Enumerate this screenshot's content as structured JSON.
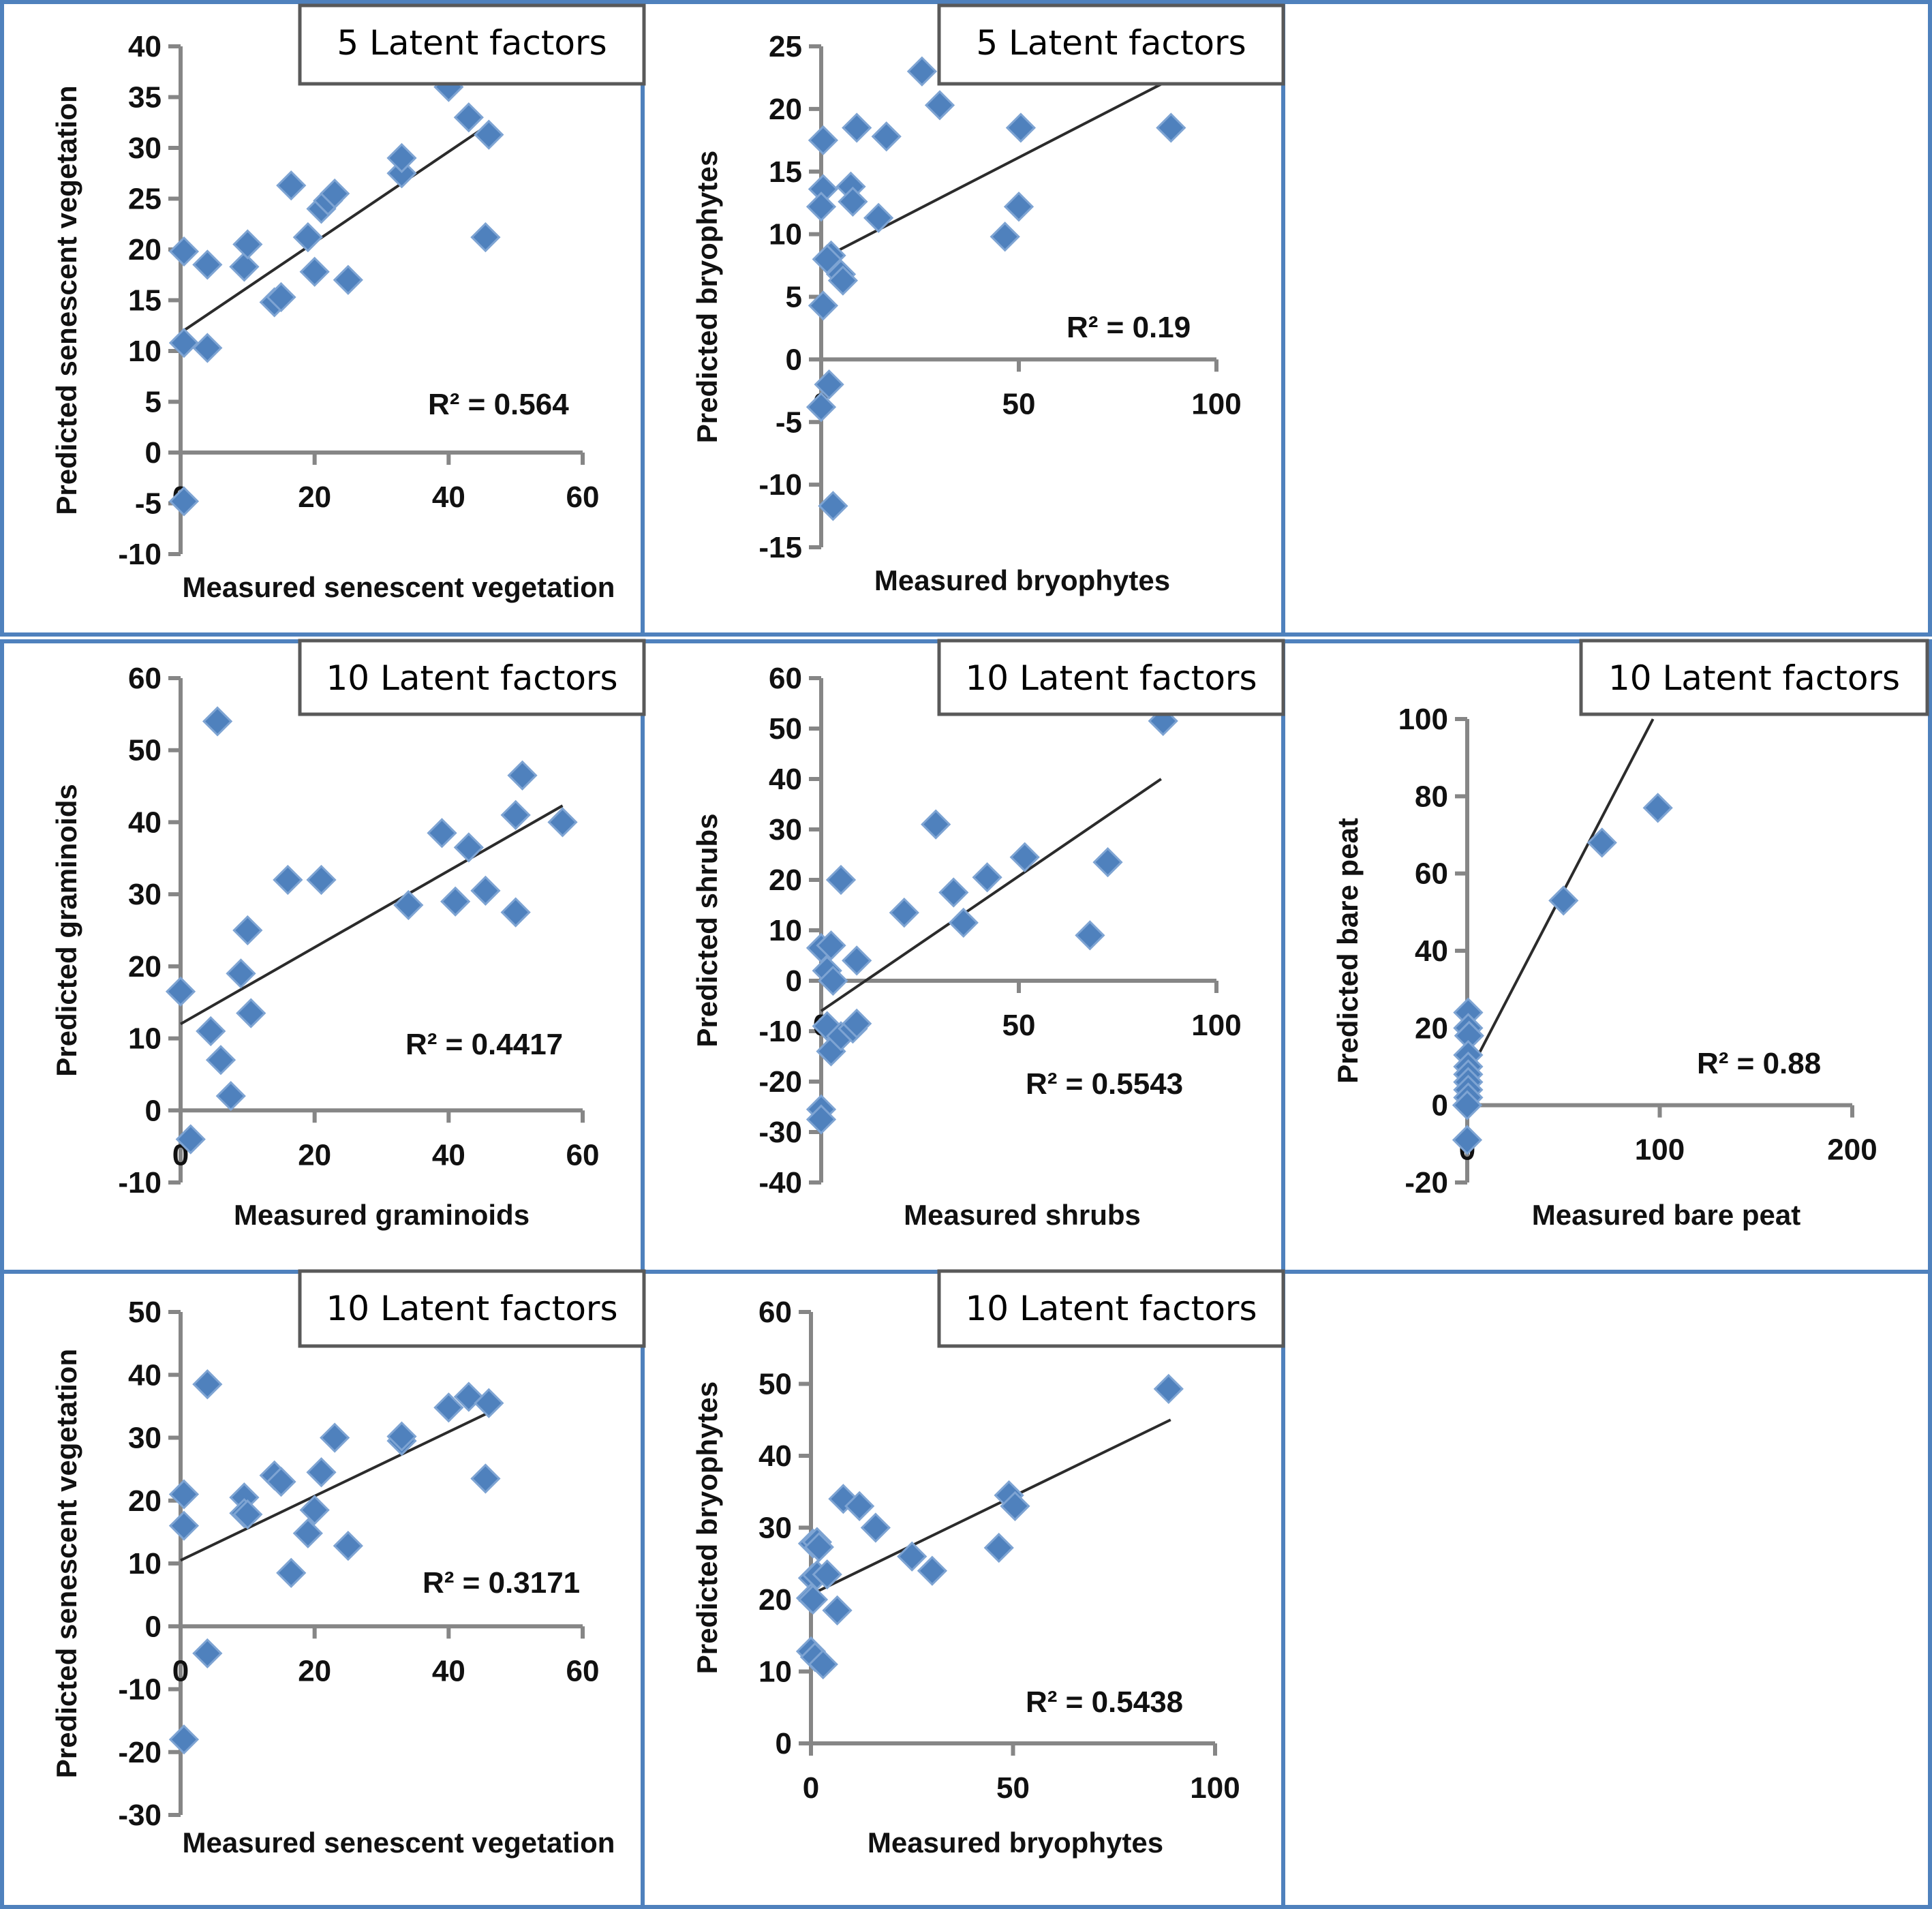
{
  "figure": {
    "colors": {
      "panel_border": "#4f81bd",
      "marker": "#4f81bd",
      "axis": "#868686",
      "trendline": "#2b2b2b",
      "label_box_border": "#595959"
    }
  },
  "chart_data": [
    {
      "id": "p1",
      "type": "scatter",
      "title": "5 Latent factors",
      "xlabel": "Measured senescent vegetation",
      "ylabel": "Predicted senescent vegetation",
      "xlim": [
        0,
        60
      ],
      "ylim": [
        -10,
        40
      ],
      "xticks": [
        0,
        20,
        40,
        60
      ],
      "yticks": [
        -10,
        -5,
        0,
        5,
        10,
        15,
        20,
        25,
        30,
        35,
        40
      ],
      "r2_label": "R² = 0.564",
      "trendline": {
        "x": [
          0,
          46
        ],
        "y": [
          11.8,
          32.3
        ]
      },
      "points": [
        [
          0.5,
          19.8
        ],
        [
          0.5,
          10.8
        ],
        [
          0.5,
          -4.8
        ],
        [
          4,
          18.5
        ],
        [
          4,
          10.3
        ],
        [
          9.5,
          18.3
        ],
        [
          10,
          20.5
        ],
        [
          14,
          14.8
        ],
        [
          15,
          15.3
        ],
        [
          16.5,
          26.3
        ],
        [
          19,
          21.2
        ],
        [
          20,
          17.8
        ],
        [
          21,
          24
        ],
        [
          22,
          24.8
        ],
        [
          23,
          25.5
        ],
        [
          25,
          17
        ],
        [
          33,
          27.5
        ],
        [
          33,
          29
        ],
        [
          40,
          36
        ],
        [
          43,
          33
        ],
        [
          45.5,
          21.2
        ],
        [
          46,
          31.3
        ]
      ],
      "grid": false
    },
    {
      "id": "p2",
      "type": "scatter",
      "title": "5 Latent factors",
      "xlabel": "Measured bryophytes",
      "ylabel": "Predicted bryophytes",
      "xlim": [
        0,
        100
      ],
      "ylim": [
        -15,
        25
      ],
      "xticks": [
        0,
        50,
        100
      ],
      "yticks": [
        -15,
        -10,
        -5,
        0,
        5,
        10,
        15,
        20,
        25
      ],
      "r2_label": "R² = 0.19",
      "trendline": {
        "x": [
          0,
          88
        ],
        "y": [
          8,
          22.3
        ]
      },
      "points": [
        [
          0.5,
          17.5
        ],
        [
          0.5,
          13.6
        ],
        [
          0,
          12.2
        ],
        [
          0.5,
          4.3
        ],
        [
          0,
          -3.8
        ],
        [
          2,
          -2
        ],
        [
          3,
          -11.7
        ],
        [
          2.5,
          8.3
        ],
        [
          1.5,
          8
        ],
        [
          5,
          6.8
        ],
        [
          5.5,
          6.3
        ],
        [
          7.5,
          13.8
        ],
        [
          8,
          12.6
        ],
        [
          9,
          18.5
        ],
        [
          14.5,
          11.3
        ],
        [
          16.5,
          17.8
        ],
        [
          25.5,
          23
        ],
        [
          30,
          20.3
        ],
        [
          46.5,
          9.8
        ],
        [
          50,
          12.2
        ],
        [
          50.5,
          18.5
        ],
        [
          88.5,
          18.5
        ]
      ],
      "grid": false
    },
    {
      "id": "p3",
      "type": "scatter",
      "title": "10 Latent factors",
      "xlabel": "Measured graminoids",
      "ylabel": "Predicted graminoids",
      "xlim": [
        0,
        60
      ],
      "ylim": [
        -10,
        60
      ],
      "xticks": [
        0,
        20,
        40,
        60
      ],
      "yticks": [
        -10,
        0,
        10,
        20,
        30,
        40,
        50,
        60
      ],
      "r2_label": "R² = 0.4417",
      "trendline": {
        "x": [
          0,
          57
        ],
        "y": [
          12,
          42.3
        ]
      },
      "points": [
        [
          0,
          16.5
        ],
        [
          1.5,
          -4
        ],
        [
          4.5,
          11
        ],
        [
          5.5,
          54
        ],
        [
          6,
          7
        ],
        [
          7.5,
          2
        ],
        [
          9,
          19
        ],
        [
          10,
          25
        ],
        [
          10.5,
          13.5
        ],
        [
          16,
          32
        ],
        [
          21,
          32
        ],
        [
          34,
          28.5
        ],
        [
          39,
          38.5
        ],
        [
          41,
          29
        ],
        [
          43,
          36.5
        ],
        [
          45.5,
          30.5
        ],
        [
          50,
          27.5
        ],
        [
          50,
          41
        ],
        [
          51,
          46.5
        ],
        [
          57,
          40
        ]
      ],
      "grid": false
    },
    {
      "id": "p4",
      "type": "scatter",
      "title": "10 Latent factors",
      "xlabel": "Measured shrubs",
      "ylabel": "Predicted shrubs",
      "xlim": [
        0,
        100
      ],
      "ylim": [
        -40,
        60
      ],
      "xticks": [
        0,
        50,
        100
      ],
      "yticks": [
        -40,
        -30,
        -20,
        -10,
        0,
        10,
        20,
        30,
        40,
        50,
        60
      ],
      "r2_label": "R² = 0.5543",
      "trendline": {
        "x": [
          0,
          86
        ],
        "y": [
          -6,
          40
        ]
      },
      "points": [
        [
          0,
          6.5
        ],
        [
          2.5,
          7
        ],
        [
          1.5,
          2
        ],
        [
          3,
          0
        ],
        [
          0,
          -25.5
        ],
        [
          0,
          -27.5
        ],
        [
          1.5,
          -9
        ],
        [
          2.5,
          -14
        ],
        [
          5,
          -11
        ],
        [
          8,
          -9.5
        ],
        [
          9,
          -8.5
        ],
        [
          5,
          20
        ],
        [
          9,
          4
        ],
        [
          21,
          13.5
        ],
        [
          29,
          31
        ],
        [
          33.5,
          17.5
        ],
        [
          36,
          11.5
        ],
        [
          42,
          20.5
        ],
        [
          51.5,
          24.5
        ],
        [
          68,
          9
        ],
        [
          72.5,
          23.5
        ],
        [
          86.5,
          51.5
        ]
      ],
      "grid": false
    },
    {
      "id": "p5",
      "type": "scatter",
      "title": "10 Latent factors",
      "xlabel": "Measured bare peat",
      "ylabel": "Predicted bare peat",
      "xlim": [
        0,
        200
      ],
      "ylim": [
        -20,
        100
      ],
      "xticks": [
        0,
        100,
        200
      ],
      "yticks": [
        -20,
        0,
        20,
        40,
        60,
        80,
        100
      ],
      "r2_label": "R² = 0.88",
      "trendline": {
        "x": [
          0,
          96.5
        ],
        "y": [
          7.5,
          100
        ]
      },
      "points": [
        [
          0.5,
          24
        ],
        [
          0.5,
          20
        ],
        [
          1,
          18
        ],
        [
          0.5,
          13
        ],
        [
          0.5,
          10
        ],
        [
          0.5,
          8
        ],
        [
          0.5,
          6
        ],
        [
          0.5,
          4
        ],
        [
          0.5,
          2
        ],
        [
          0,
          0
        ],
        [
          0,
          -9
        ],
        [
          50,
          53
        ],
        [
          70,
          68
        ],
        [
          99,
          77
        ]
      ],
      "grid": false
    },
    {
      "id": "p6",
      "type": "scatter",
      "title": "10 Latent factors",
      "xlabel": "Measured senescent vegetation",
      "ylabel": "Predicted senescent vegetation",
      "xlim": [
        0,
        60
      ],
      "ylim": [
        -30,
        50
      ],
      "xticks": [
        0,
        20,
        40,
        60
      ],
      "yticks": [
        -30,
        -20,
        -10,
        0,
        10,
        20,
        30,
        40,
        50
      ],
      "r2_label": "R² = 0.3171",
      "trendline": {
        "x": [
          0,
          46
        ],
        "y": [
          10.5,
          34
        ]
      },
      "points": [
        [
          0.5,
          21
        ],
        [
          0.5,
          16
        ],
        [
          0.5,
          -18
        ],
        [
          4,
          38.5
        ],
        [
          4,
          -4.3
        ],
        [
          9.5,
          20.5
        ],
        [
          9.5,
          18
        ],
        [
          10,
          17.8
        ],
        [
          14,
          24
        ],
        [
          15,
          23
        ],
        [
          16.5,
          8.5
        ],
        [
          19,
          14.8
        ],
        [
          20,
          18.5
        ],
        [
          21,
          24.5
        ],
        [
          23,
          30
        ],
        [
          25,
          12.8
        ],
        [
          33,
          29.5
        ],
        [
          33,
          30.2
        ],
        [
          40,
          34.8
        ],
        [
          43,
          36.5
        ],
        [
          45.5,
          23.5
        ],
        [
          46,
          35.5
        ]
      ],
      "grid": false
    },
    {
      "id": "p7",
      "type": "scatter",
      "title": "10 Latent factors",
      "xlabel": "Measured bryophytes",
      "ylabel": "Predicted bryophytes",
      "xlim": [
        0,
        100
      ],
      "ylim": [
        0,
        60
      ],
      "xticks": [
        0,
        50,
        100
      ],
      "yticks": [
        0,
        10,
        20,
        30,
        40,
        50,
        60
      ],
      "r2_label": "R² = 0.5438",
      "trendline": {
        "x": [
          0,
          89
        ],
        "y": [
          20.7,
          45
        ]
      },
      "points": [
        [
          0.5,
          27.8
        ],
        [
          1.5,
          28
        ],
        [
          2,
          27.3
        ],
        [
          0.5,
          23
        ],
        [
          1.5,
          23.4
        ],
        [
          4,
          23.5
        ],
        [
          0,
          20.2
        ],
        [
          0.5,
          20
        ],
        [
          6.5,
          18.5
        ],
        [
          0,
          12.8
        ],
        [
          1,
          12
        ],
        [
          3,
          11
        ],
        [
          8,
          34
        ],
        [
          12,
          33
        ],
        [
          16,
          30
        ],
        [
          25,
          26
        ],
        [
          30,
          24
        ],
        [
          46.5,
          27.2
        ],
        [
          49,
          34.5
        ],
        [
          50.5,
          33
        ],
        [
          88.5,
          49.3
        ]
      ],
      "grid": false
    }
  ]
}
